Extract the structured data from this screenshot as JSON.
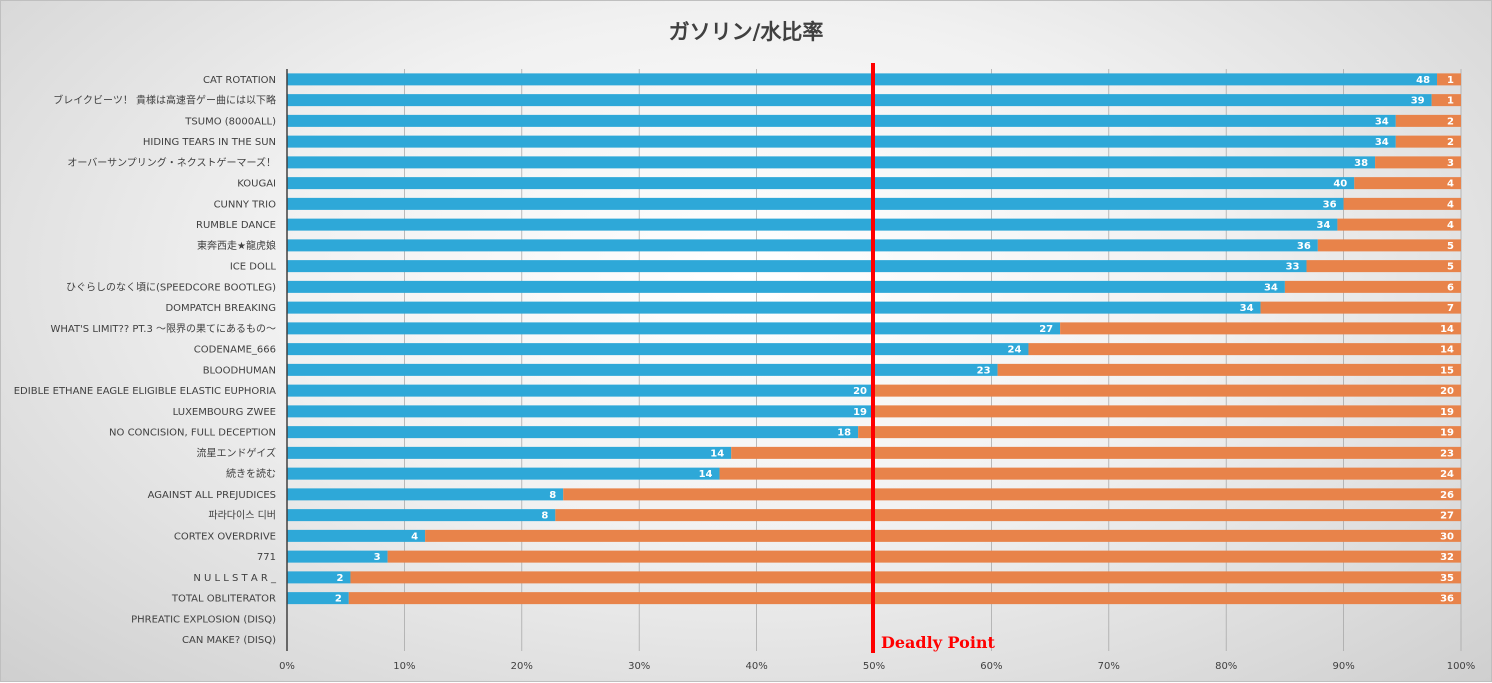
{
  "chart_data": {
    "type": "bar",
    "orientation": "horizontal",
    "stacked": "percent",
    "title": "ガソリン/水比率",
    "xlabel": "",
    "ylabel": "",
    "xlim": [
      0,
      100
    ],
    "x_ticks": [
      "0%",
      "10%",
      "20%",
      "30%",
      "40%",
      "50%",
      "60%",
      "70%",
      "80%",
      "90%",
      "100%"
    ],
    "grid": "vertical",
    "legend": "none",
    "categories": [
      "CAT ROTATION",
      "ブレイクビーツ！ 貴様は高速音ゲー曲には以下略",
      "TSUMO (8000ALL)",
      "HIDING TEARS IN THE SUN",
      "オーバーサンプリング・ネクストゲーマーズ！",
      "KOUGAI",
      "CUNNY TRIO",
      "RUMBLE DANCE",
      "東奔西走★龍虎娘",
      "ICE DOLL",
      "ひぐらしのなく頃に(SPEEDCORE BOOTLEG)",
      "DOMPATCH BREAKING",
      "WHAT'S LIMIT?? PT.3 〜限界の果てにあるもの〜",
      "CODENAME_666",
      "BLOODHUMAN",
      "EDIBLE ETHANE EAGLE ELIGIBLE ELASTIC EUPHORIA",
      "LUXEMBOURG ZWEE",
      "NO CONCISION, FULL DECEPTION",
      "流星エンドゲイズ",
      "続きを読む",
      "AGAINST ALL PREJUDICES",
      "파라다이스 디버",
      "CORTEX OVERDRIVE",
      "771",
      "N U L L S T A R _",
      "TOTAL OBLITERATOR",
      "PHREATIC EXPLOSION (DISQ)",
      "CAN MAKE? (DISQ)"
    ],
    "series": [
      {
        "color": "#2ea8d8",
        "values": [
          48,
          39,
          34,
          34,
          38,
          40,
          36,
          34,
          36,
          33,
          34,
          34,
          27,
          24,
          23,
          20,
          19,
          18,
          14,
          14,
          8,
          8,
          4,
          3,
          2,
          2,
          0,
          0
        ]
      },
      {
        "color": "#e8834a",
        "values": [
          1,
          1,
          2,
          2,
          3,
          4,
          4,
          4,
          5,
          5,
          6,
          7,
          14,
          14,
          15,
          20,
          19,
          19,
          23,
          24,
          26,
          27,
          30,
          32,
          35,
          36,
          0,
          0
        ]
      }
    ],
    "reference_line": {
      "x": 50,
      "label": "Deadly Point",
      "color": "#ff0000"
    }
  }
}
